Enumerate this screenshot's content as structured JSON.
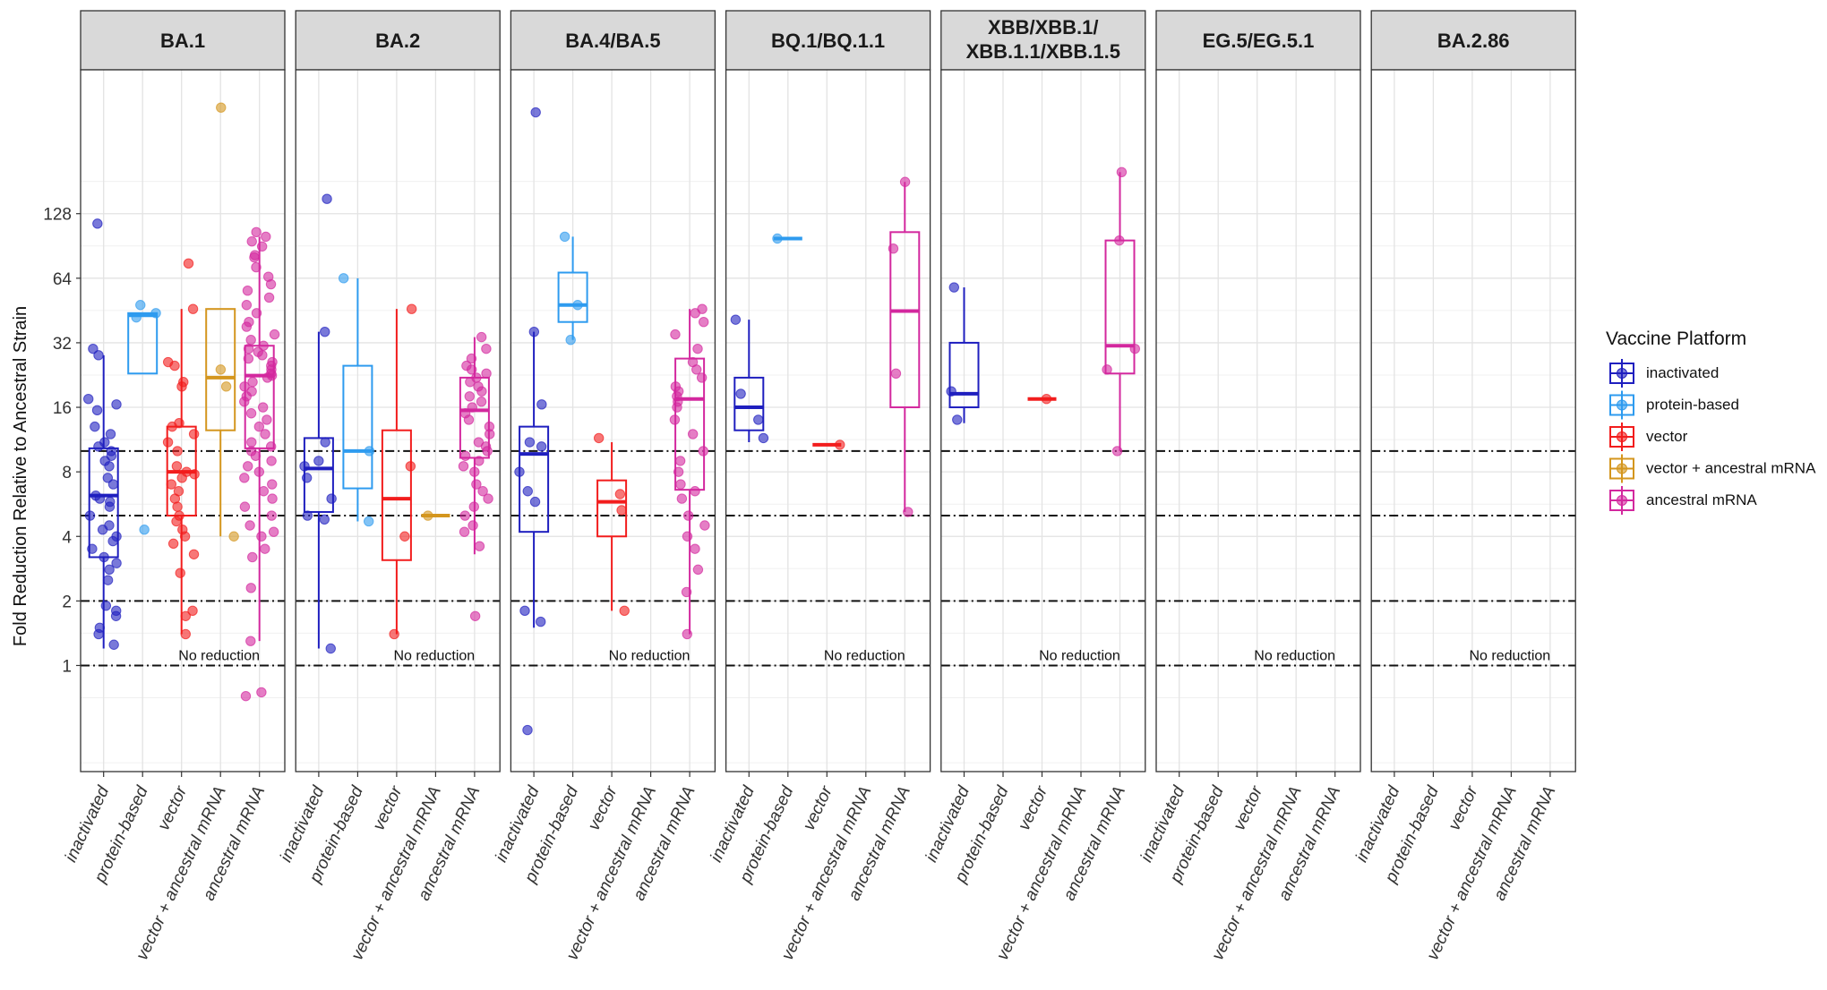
{
  "chart_data": {
    "type": "box",
    "ylabel": "Fold Reduction Relative to Ancestral Strain",
    "yscale": "log2",
    "ylim": [
      0.32,
      600
    ],
    "yticks": [
      1,
      2,
      4,
      8,
      16,
      32,
      64,
      128
    ],
    "ytick_labels": [
      "1",
      "2",
      "4",
      "8",
      "16",
      "32",
      "64",
      "128"
    ],
    "categories": [
      "inactivated",
      "protein-based",
      "vector",
      "vector + ancestral mRNA",
      "ancestral mRNA"
    ],
    "reference_lines": [
      {
        "y": 1,
        "style": "dashdot"
      },
      {
        "y": 2,
        "style": "dashdot"
      },
      {
        "y": 5,
        "style": "dashdot"
      },
      {
        "y": 10,
        "style": "dashdot"
      }
    ],
    "annotation": "No reduction",
    "legend": {
      "title": "Vaccine Platform",
      "placement": "right",
      "entries": [
        {
          "name": "inactivated",
          "color": "#1f1fbf"
        },
        {
          "name": "protein-based",
          "color": "#2e9bef"
        },
        {
          "name": "vector",
          "color": "#f21d1d"
        },
        {
          "name": "vector + ancestral mRNA",
          "color": "#d4961e"
        },
        {
          "name": "ancestral mRNA",
          "color": "#d3289e"
        }
      ]
    },
    "facets": [
      {
        "name": "BA.1",
        "boxes": [
          {
            "category": "inactivated",
            "q1": 3.2,
            "median": 6.2,
            "q3": 10.3,
            "lo": 1.2,
            "hi": 28,
            "points": [
              17.5,
              16.5,
              15.5,
              13,
              12,
              11,
              10.5,
              10,
              9.5,
              9,
              8.5,
              7.5,
              7,
              6.2,
              6,
              5.8,
              5.5,
              5,
              4.5,
              4.3,
              4,
              3.8,
              3.5,
              3.2,
              3,
              2.8,
              2.5,
              1.9,
              1.8,
              1.7,
              1.5,
              1.4,
              1.25,
              28,
              30,
              115
            ]
          },
          {
            "category": "protein-based",
            "q1": 23,
            "median": 43,
            "q3": 44,
            "lo": 23,
            "hi": 44,
            "points": [
              48,
              42,
              44,
              4.3
            ]
          },
          {
            "category": "vector",
            "q1": 5,
            "median": 8,
            "q3": 13,
            "lo": 1.4,
            "hi": 46,
            "points": [
              75,
              46,
              26,
              25,
              21,
              20,
              13.5,
              13,
              12,
              11,
              10,
              8.5,
              8,
              7.8,
              7.5,
              7,
              6.5,
              6,
              5.5,
              5,
              4.7,
              4.3,
              4,
              3.7,
              3.3,
              2.7,
              1.8,
              1.7,
              1.4
            ]
          },
          {
            "category": "vector + ancestral mRNA",
            "q1": 12.5,
            "median": 22,
            "q3": 46,
            "lo": 4,
            "hi": 46,
            "points": [
              400,
              24,
              20,
              4
            ]
          },
          {
            "category": "ancestral mRNA",
            "q1": 10.3,
            "median": 22.5,
            "q3": 31,
            "lo": 1.3,
            "hi": 100,
            "points": [
              105,
              100,
              95,
              90,
              82,
              80,
              72,
              65,
              60,
              56,
              52,
              48,
              44,
              40,
              38,
              35,
              33,
              31,
              30,
              29,
              28,
              27,
              26,
              25,
              24,
              23,
              22.5,
              22,
              21,
              20,
              19,
              18,
              17,
              16,
              15,
              14,
              13,
              12,
              11,
              10.5,
              10,
              9.5,
              9,
              8.5,
              8,
              7.5,
              7,
              6.5,
              6,
              5.5,
              5,
              4.5,
              4.2,
              4,
              3.5,
              3.2,
              2.3,
              1.3,
              0.75,
              0.72
            ]
          }
        ]
      },
      {
        "name": "BA.2",
        "boxes": [
          {
            "category": "inactivated",
            "q1": 5.2,
            "median": 8.3,
            "q3": 11.5,
            "lo": 1.2,
            "hi": 36,
            "points": [
              150,
              36,
              11,
              9,
              8.5,
              7.5,
              6,
              5,
              4.8,
              1.2
            ]
          },
          {
            "category": "protein-based",
            "q1": 6.7,
            "median": 10,
            "q3": 25,
            "lo": 4.7,
            "hi": 64,
            "points": [
              64,
              10,
              4.7
            ]
          },
          {
            "category": "vector",
            "q1": 3.1,
            "median": 6,
            "q3": 12.5,
            "lo": 1.4,
            "hi": 46,
            "points": [
              46,
              8.5,
              4,
              1.4
            ]
          },
          {
            "category": "vector + ancestral mRNA",
            "q1": 5,
            "median": 5,
            "q3": 5,
            "lo": 5,
            "hi": 5,
            "points": [
              5
            ]
          },
          {
            "category": "ancestral mRNA",
            "q1": 9.3,
            "median": 15.5,
            "q3": 22,
            "lo": 3.3,
            "hi": 34,
            "points": [
              34,
              30,
              27,
              25,
              24,
              23,
              22,
              21,
              20,
              19,
              18,
              17,
              16,
              15,
              14,
              13,
              12,
              11,
              10.5,
              10,
              9.5,
              9,
              8.5,
              8,
              7,
              6.5,
              6,
              5.5,
              5,
              4.5,
              4.2,
              3.6,
              1.7
            ]
          }
        ]
      },
      {
        "name": "BA.4/BA.5",
        "boxes": [
          {
            "category": "inactivated",
            "q1": 4.2,
            "median": 9.7,
            "q3": 13,
            "lo": 1.5,
            "hi": 36,
            "points": [
              380,
              36,
              16.5,
              11,
              10.5,
              8,
              6.5,
              5.8,
              1.8,
              1.6,
              0.5
            ]
          },
          {
            "category": "protein-based",
            "q1": 40,
            "median": 48,
            "q3": 68,
            "lo": 33,
            "hi": 100,
            "points": [
              100,
              48,
              33
            ]
          },
          {
            "category": "vector",
            "q1": 4,
            "median": 5.8,
            "q3": 7.3,
            "lo": 1.8,
            "hi": 11,
            "points": [
              11.5,
              6.3,
              5.3,
              1.8
            ]
          },
          {
            "category": "ancestral mRNA",
            "q1": 6.6,
            "median": 17.5,
            "q3": 27,
            "lo": 1.4,
            "hi": 46,
            "points": [
              46,
              44,
              40,
              35,
              30,
              26,
              24,
              22,
              20,
              19,
              18,
              17,
              16,
              14,
              12,
              10,
              9,
              8,
              7,
              6.5,
              6,
              5,
              4.5,
              4,
              3.5,
              2.8,
              2.2,
              1.4
            ]
          }
        ]
      },
      {
        "name": "BQ.1/BQ.1.1",
        "boxes": [
          {
            "category": "inactivated",
            "q1": 12.5,
            "median": 16,
            "q3": 22,
            "lo": 11,
            "hi": 41,
            "points": [
              41,
              18.5,
              14,
              11.5
            ]
          },
          {
            "category": "protein-based",
            "q1": 98,
            "median": 98,
            "q3": 98,
            "lo": 98,
            "hi": 98,
            "points": [
              98
            ]
          },
          {
            "category": "vector",
            "q1": 10.7,
            "median": 10.7,
            "q3": 10.7,
            "lo": 10.7,
            "hi": 10.7,
            "points": [
              10.7
            ]
          },
          {
            "category": "ancestral mRNA",
            "q1": 16,
            "median": 45,
            "q3": 105,
            "lo": 5.2,
            "hi": 180,
            "points": [
              180,
              88,
              23,
              5.2
            ]
          }
        ]
      },
      {
        "name": "XBB/XBB.1/\nXBB.1.1/XBB.1.5",
        "boxes": [
          {
            "category": "inactivated",
            "q1": 16,
            "median": 18.5,
            "q3": 32,
            "lo": 13.5,
            "hi": 58,
            "points": [
              58,
              19,
              14
            ]
          },
          {
            "category": "vector",
            "q1": 17.5,
            "median": 17.5,
            "q3": 17.5,
            "lo": 17.5,
            "hi": 17.5,
            "points": [
              17.5
            ]
          },
          {
            "category": "ancestral mRNA",
            "q1": 23,
            "median": 31,
            "q3": 96,
            "lo": 10,
            "hi": 200,
            "points": [
              200,
              96,
              30,
              24,
              10
            ]
          }
        ]
      },
      {
        "name": "EG.5/EG.5.1",
        "boxes": []
      },
      {
        "name": "BA.2.86",
        "boxes": []
      }
    ]
  }
}
